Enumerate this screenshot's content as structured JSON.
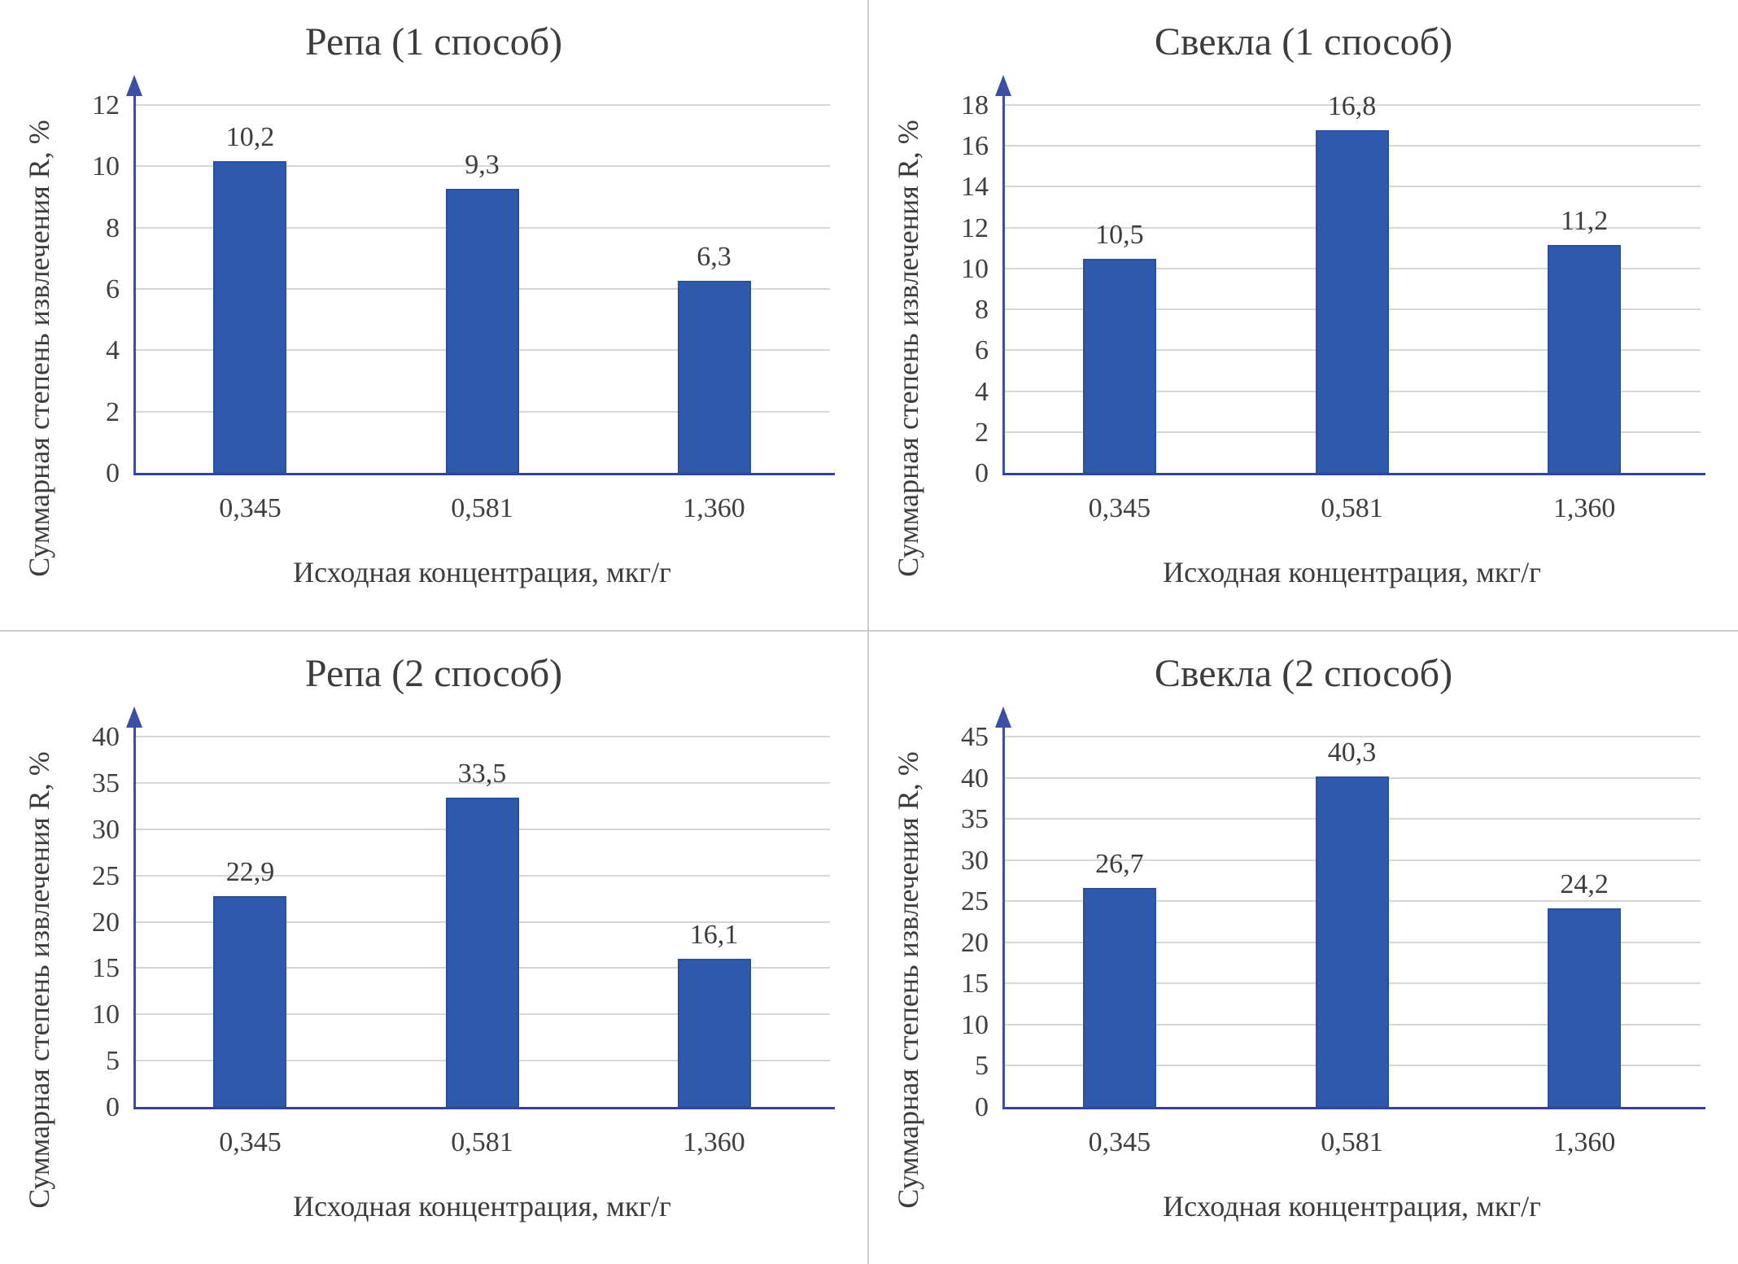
{
  "layout": {
    "grid": "2x2",
    "divider_color": "#cccccc",
    "background": "#ffffff"
  },
  "colors": {
    "bar": "#2d5aad",
    "axis": "#3a4fa5",
    "gridline": "#d8d8d8",
    "text": "#3f3f3f"
  },
  "chart_data": [
    {
      "type": "bar",
      "title": "Репа (1 способ)",
      "categories": [
        "0,345",
        "0,581",
        "1,360"
      ],
      "values": [
        10.2,
        9.3,
        6.3
      ],
      "value_labels": [
        "10,2",
        "9,3",
        "6,3"
      ],
      "xlabel": "Исходная концентрация, мкг/г",
      "ylabel": "Суммарная степень извлечения R, %",
      "ylim": [
        0,
        12
      ],
      "ytick_step": 2,
      "grid": true,
      "legend": false
    },
    {
      "type": "bar",
      "title": "Свекла (1 способ)",
      "categories": [
        "0,345",
        "0,581",
        "1,360"
      ],
      "values": [
        10.5,
        16.8,
        11.2
      ],
      "value_labels": [
        "10,5",
        "16,8",
        "11,2"
      ],
      "xlabel": "Исходная концентрация, мкг/г",
      "ylabel": "Суммарная степень извлечения R, %",
      "ylim": [
        0,
        18
      ],
      "ytick_step": 2,
      "grid": true,
      "legend": false
    },
    {
      "type": "bar",
      "title": "Репа (2 способ)",
      "categories": [
        "0,345",
        "0,581",
        "1,360"
      ],
      "values": [
        22.9,
        33.5,
        16.1
      ],
      "value_labels": [
        "22,9",
        "33,5",
        "16,1"
      ],
      "xlabel": "Исходная концентрация, мкг/г",
      "ylabel": "Суммарная степень извлечения R, %",
      "ylim": [
        0,
        40
      ],
      "ytick_step": 5,
      "grid": true,
      "legend": false
    },
    {
      "type": "bar",
      "title": "Свекла (2 способ)",
      "categories": [
        "0,345",
        "0,581",
        "1,360"
      ],
      "values": [
        26.7,
        40.3,
        24.2
      ],
      "value_labels": [
        "26,7",
        "40,3",
        "24,2"
      ],
      "xlabel": "Исходная концентрация, мкг/г",
      "ylabel": "Суммарная степень извлечения R, %",
      "ylim": [
        0,
        45
      ],
      "ytick_step": 5,
      "grid": true,
      "legend": false
    }
  ]
}
